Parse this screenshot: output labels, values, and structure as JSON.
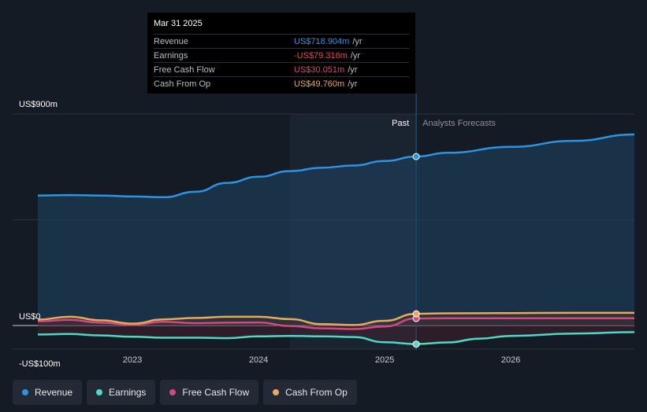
{
  "tooltip": {
    "date": "Mar 31 2025",
    "rows": [
      {
        "label": "Revenue",
        "value": "US$718.904m",
        "unit": "/yr",
        "color": "#2e93e0"
      },
      {
        "label": "Earnings",
        "value": "-US$79.316m",
        "unit": "/yr",
        "color": "#e8425a"
      },
      {
        "label": "Free Cash Flow",
        "value": "US$30.051m",
        "unit": "/yr",
        "color": "#d2497c"
      },
      {
        "label": "Cash From Op",
        "value": "US$49.760m",
        "unit": "/yr",
        "color": "#e8a95c"
      }
    ]
  },
  "legend": [
    {
      "label": "Revenue",
      "color": "#2e93e0"
    },
    {
      "label": "Earnings",
      "color": "#4fd8c4"
    },
    {
      "label": "Free Cash Flow",
      "color": "#d2497c"
    },
    {
      "label": "Cash From Op",
      "color": "#e8a95c"
    }
  ],
  "chart_data": {
    "type": "line",
    "title": "",
    "xlabel": "",
    "ylabel": "",
    "ylim": [
      -100,
      900
    ],
    "y_tick_labels": [
      "US$900m",
      "US$0",
      "-US$100m"
    ],
    "x_ticks": [
      2023,
      2024,
      2025,
      2026
    ],
    "x_tick_labels": [
      "2023",
      "2024",
      "2025",
      "2026"
    ],
    "xlim": [
      2022.25,
      2026.98
    ],
    "past_start": 2024.25,
    "divider": 2025.25,
    "past_label": "Past",
    "forecast_label": "Analysts Forecasts",
    "series": [
      {
        "name": "Revenue",
        "color": "#2e93e0",
        "x": [
          2022.25,
          2022.5,
          2022.75,
          2023.0,
          2023.25,
          2023.5,
          2023.75,
          2024.0,
          2024.25,
          2024.5,
          2024.75,
          2025.0,
          2025.25,
          2025.5,
          2026.0,
          2026.5,
          2026.98
        ],
        "y": [
          553,
          555,
          553,
          549,
          546,
          569,
          607,
          633,
          657,
          671,
          681,
          700,
          719,
          735,
          760,
          786,
          813
        ],
        "highlight": 718.904
      },
      {
        "name": "Earnings",
        "color": "#4fd8c4",
        "x": [
          2022.25,
          2022.5,
          2022.75,
          2023.0,
          2023.25,
          2023.5,
          2023.75,
          2024.0,
          2024.25,
          2024.5,
          2024.75,
          2025.0,
          2025.25,
          2025.5,
          2025.75,
          2026.0,
          2026.5,
          2026.98
        ],
        "y": [
          -38,
          -36,
          -42,
          -48,
          -52,
          -52,
          -54,
          -46,
          -44,
          -46,
          -49,
          -71,
          -79,
          -72,
          -56,
          -44,
          -34,
          -28
        ],
        "highlight": -79.316
      },
      {
        "name": "Free Cash Flow",
        "color": "#d2497c",
        "x": [
          2022.25,
          2022.5,
          2022.75,
          2023.0,
          2023.25,
          2023.5,
          2023.75,
          2024.0,
          2024.25,
          2024.5,
          2024.75,
          2025.0,
          2025.25,
          2025.5,
          2026.0,
          2026.5,
          2026.98
        ],
        "y": [
          18,
          24,
          12,
          3,
          16,
          10,
          12,
          13,
          -2,
          -12,
          -15,
          -4,
          30,
          31,
          31,
          31,
          31
        ],
        "highlight": 30.051
      },
      {
        "name": "Cash From Op",
        "color": "#e8a95c",
        "x": [
          2022.25,
          2022.5,
          2022.75,
          2023.0,
          2023.25,
          2023.5,
          2023.75,
          2024.0,
          2024.25,
          2024.5,
          2024.75,
          2025.0,
          2025.25,
          2025.5,
          2026.0,
          2026.5,
          2026.98
        ],
        "y": [
          25,
          37,
          22,
          8,
          26,
          32,
          37,
          37,
          27,
          6,
          2,
          20,
          50,
          52,
          53,
          54,
          54
        ],
        "highlight": 49.76
      }
    ]
  }
}
